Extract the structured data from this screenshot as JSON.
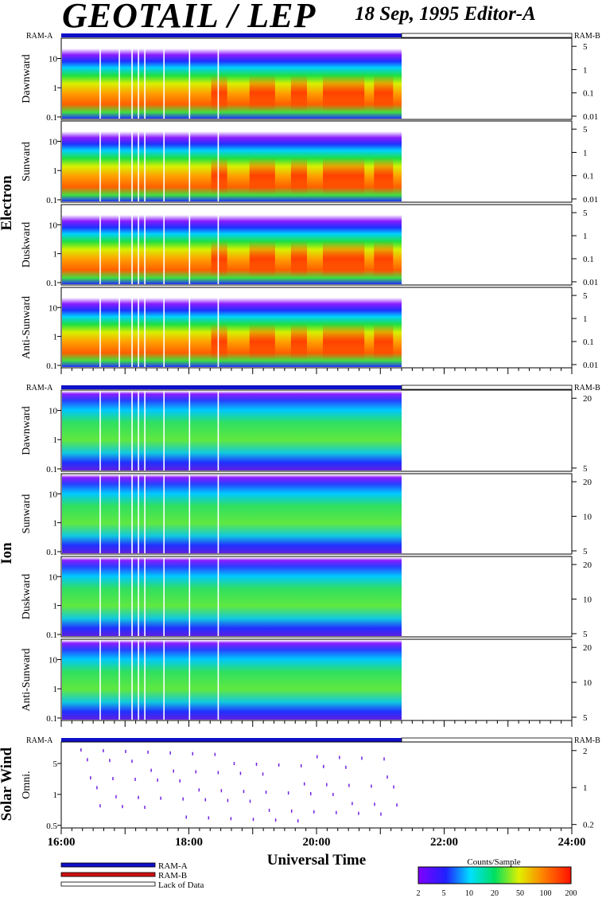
{
  "header": {
    "title": "GEOTAIL / LEP",
    "subtitle": "18 Sep, 1995   Editor-A"
  },
  "colors": {
    "ram_a": "#1010c8",
    "ram_b": "#d01010",
    "lack": "#ffffff"
  },
  "chart_data": {
    "type": "heatmap",
    "x_axis": {
      "label": "Universal Time",
      "range": [
        "16:00",
        "24:00"
      ],
      "ticks": [
        "16:00",
        "18:00",
        "20:00",
        "22:00",
        "24:00"
      ],
      "data_end": "21:20"
    },
    "groups": [
      {
        "label": "Electron",
        "ram_a": "RAM-A",
        "ram_b": "RAM-B",
        "panels": [
          {
            "label": "Dawnward",
            "y_ticks": [
              "10",
              "1",
              "0.1"
            ],
            "right_ticks": [
              "5",
              "1",
              "0.1",
              "0.01"
            ]
          },
          {
            "label": "Sunward",
            "y_ticks": [
              "10",
              "1",
              "0.1"
            ],
            "right_ticks": [
              "5",
              "1",
              "0.1",
              "0.01"
            ]
          },
          {
            "label": "Duskward",
            "y_ticks": [
              "10",
              "1",
              "0.1"
            ],
            "right_ticks": [
              "5",
              "1",
              "0.1",
              "0.01"
            ]
          },
          {
            "label": "Anti-Sunward",
            "y_ticks": [
              "10",
              "1",
              "0.1"
            ],
            "right_ticks": [
              "5",
              "1",
              "0.1",
              "0.01"
            ]
          }
        ]
      },
      {
        "label": "Ion",
        "ram_a": "RAM-A",
        "ram_b": "RAM-B",
        "panels": [
          {
            "label": "Dawnward",
            "y_ticks": [
              "10",
              "1",
              "0.1"
            ],
            "right_ticks": [
              "20",
              "5"
            ]
          },
          {
            "label": "Sunward",
            "y_ticks": [
              "10",
              "1",
              "0.1"
            ],
            "right_ticks": [
              "20",
              "10",
              "5"
            ]
          },
          {
            "label": "Duskward",
            "y_ticks": [
              "10",
              "1",
              "0.1"
            ],
            "right_ticks": [
              "20",
              "10",
              "5"
            ]
          },
          {
            "label": "Anti-Sunward",
            "y_ticks": [
              "10",
              "1",
              "0.1"
            ],
            "right_ticks": [
              "20",
              "10",
              "5"
            ]
          }
        ]
      },
      {
        "label": "Solar Wind",
        "ram_a": "RAM-A",
        "ram_b": "RAM-B",
        "panels": [
          {
            "label": "Omni.",
            "y_ticks": [
              "5",
              "1",
              "0.5"
            ],
            "right_ticks": [
              "2",
              "1",
              "0.2"
            ]
          }
        ]
      }
    ],
    "legend": {
      "items": [
        "RAM-A",
        "RAM-B",
        "Lack of Data"
      ]
    },
    "colorbar": {
      "title": "Counts/Sample",
      "ticks": [
        "2",
        "5",
        "10",
        "20",
        "50",
        "100",
        "200"
      ]
    }
  }
}
